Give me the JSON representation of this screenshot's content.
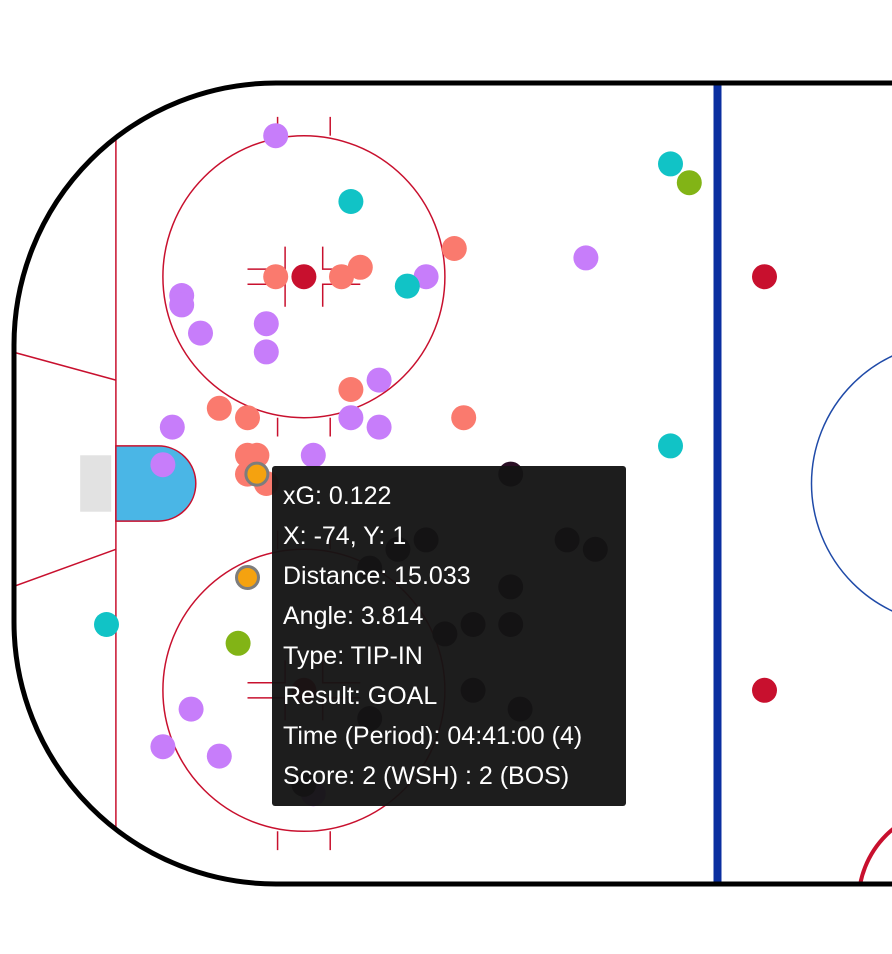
{
  "chart_data": {
    "type": "scatter",
    "title": "",
    "xlabel": "",
    "ylabel": "",
    "xlim": [
      -100,
      0
    ],
    "ylim": [
      -42.5,
      42.5
    ],
    "grid": false,
    "colors": {
      "purple": "#c77dfa",
      "salmon": "#fa7a6e",
      "teal": "#11c3c6",
      "olive": "#82b416",
      "highlight": "#f5a20f",
      "rink_red": "#c8102e",
      "blue_line": "#0b2fa0",
      "center_circle": "#1f4aa8",
      "crease": "#4ab6e6",
      "net": "#e2e2e2"
    },
    "shot_groups": [
      {
        "color": "purple",
        "points": [
          [
            -72,
            37
          ],
          [
            -82,
            20
          ],
          [
            -82,
            19
          ],
          [
            -80,
            16
          ],
          [
            -73,
            17
          ],
          [
            -73,
            14
          ],
          [
            -56,
            22
          ],
          [
            -39,
            24
          ],
          [
            -61,
            11
          ],
          [
            -64,
            7
          ],
          [
            -61,
            6
          ],
          [
            -83,
            6
          ],
          [
            -84,
            2
          ],
          [
            -68,
            3
          ],
          [
            -81,
            -24
          ],
          [
            -84,
            -28
          ],
          [
            -78,
            -29
          ],
          [
            -68,
            -33
          ]
        ]
      },
      {
        "color": "salmon",
        "points": [
          [
            -72,
            22
          ],
          [
            -65,
            22
          ],
          [
            -63,
            23
          ],
          [
            -53,
            25
          ],
          [
            -64,
            10
          ],
          [
            -78,
            8
          ],
          [
            -75,
            7
          ],
          [
            -75,
            3
          ],
          [
            -74,
            3
          ],
          [
            -52,
            7
          ],
          [
            -75,
            1
          ],
          [
            -73,
            0
          ]
        ]
      },
      {
        "color": "teal",
        "points": [
          [
            -64,
            30
          ],
          [
            -30,
            34
          ],
          [
            -58,
            21
          ],
          [
            -30,
            4
          ],
          [
            -90,
            -15
          ]
        ]
      },
      {
        "color": "olive",
        "points": [
          [
            -28,
            32
          ],
          [
            -76,
            -17
          ]
        ]
      },
      {
        "color": "highlight",
        "points": [
          [
            -74,
            1
          ],
          [
            -75,
            -10
          ]
        ]
      },
      {
        "color": "dim",
        "points": [
          [
            -47,
            1
          ],
          [
            -59,
            -7
          ],
          [
            -56,
            -6
          ],
          [
            -41,
            -6
          ],
          [
            -38,
            -7
          ],
          [
            -62,
            -9
          ],
          [
            -47,
            -11
          ],
          [
            -51,
            -15
          ],
          [
            -47,
            -15
          ],
          [
            -54,
            -16
          ],
          [
            -51,
            -22
          ],
          [
            -62,
            -25
          ],
          [
            -46,
            -24
          ],
          [
            -69,
            -32
          ]
        ]
      }
    ],
    "faceoff_dots": [
      [
        -69,
        22
      ],
      [
        -69,
        -22
      ],
      [
        -20,
        22
      ],
      [
        -20,
        -22
      ]
    ]
  },
  "tooltip": {
    "xg": "xG: 0.122",
    "xy": "X: -74, Y: 1",
    "distance": "Distance: 15.033",
    "angle": "Angle: 3.814",
    "type": "Type: TIP-IN",
    "result": "Result: GOAL",
    "time": "Time (Period): 04:41:00 (4)",
    "score": "Score: 2 (WSH) : 2 (BOS)"
  }
}
